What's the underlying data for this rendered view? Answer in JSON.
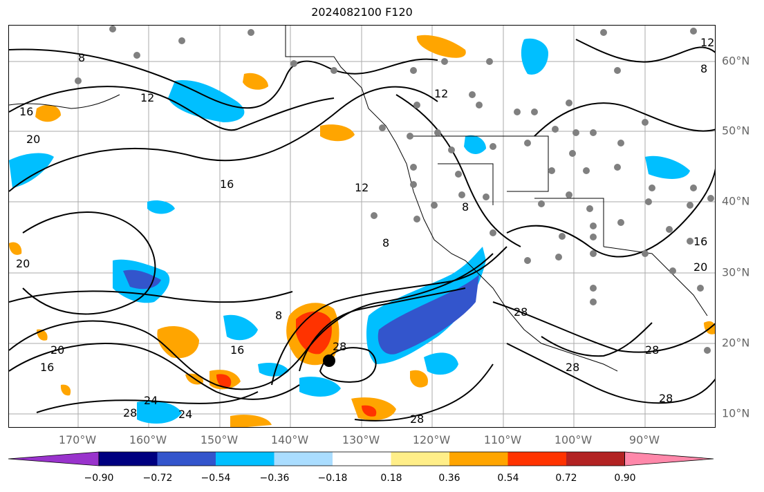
{
  "title": "2024082100 F120",
  "lon_labels": [
    "170°W",
    "160°W",
    "150°W",
    "140°W",
    "130°W",
    "120°W",
    "110°W",
    "100°W",
    "90°W"
  ],
  "lat_labels": [
    "60°N",
    "50°N",
    "40°N",
    "30°N",
    "20°N",
    "10°N"
  ],
  "contour_labels": [
    "8",
    "12",
    "16",
    "20",
    "24",
    "28"
  ],
  "colorbar": {
    "colors": [
      "#9933cc",
      "#000080",
      "#3355cc",
      "#00bfff",
      "#aaddff",
      "#ffffff",
      "#ffee88",
      "#ffa500",
      "#ff3300",
      "#b22222",
      "#ff88aa"
    ],
    "labels": [
      "−0.90",
      "−0.72",
      "−0.54",
      "−0.36",
      "−0.18",
      "0.18",
      "0.36",
      "0.54",
      "0.72",
      "0.90"
    ]
  }
}
